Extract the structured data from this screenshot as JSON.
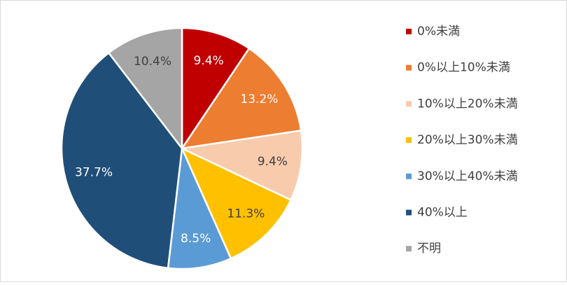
{
  "chart_data": {
    "type": "pie",
    "categories": [
      "0%未満",
      "0%以上10%未満",
      "10%以上20%未満",
      "20%以上30%未満",
      "30%以上40%未満",
      "40%以上",
      "不明"
    ],
    "values": [
      9.4,
      13.2,
      9.4,
      11.3,
      8.5,
      37.7,
      10.4
    ],
    "value_labels": [
      "9.4%",
      "13.2%",
      "9.4%",
      "11.3%",
      "8.5%",
      "37.7%",
      "10.4%"
    ],
    "colors": [
      "#c00000",
      "#ed7d31",
      "#f8cbad",
      "#ffc000",
      "#5b9bd5",
      "#1f4e79",
      "#a5a5a5"
    ]
  }
}
